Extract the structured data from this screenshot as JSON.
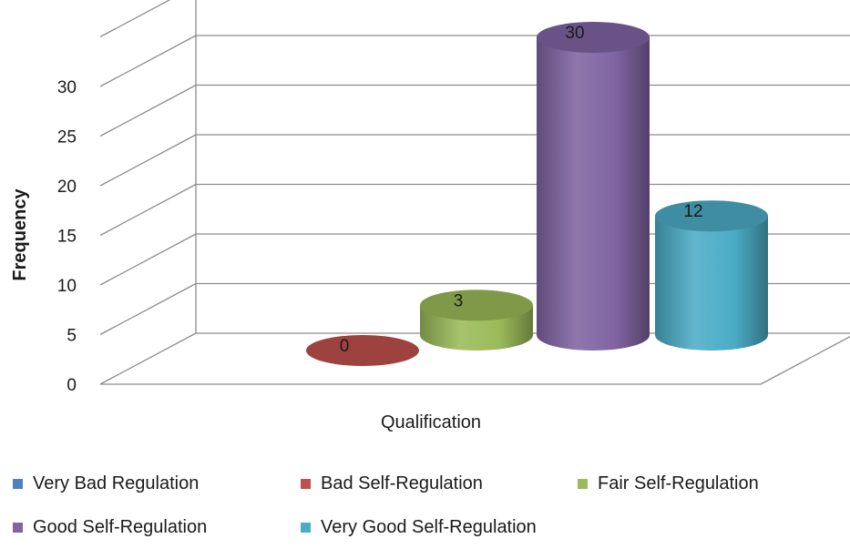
{
  "chart_data": {
    "type": "bar",
    "style": "3d-cylinder",
    "xlabel": "Qualification",
    "ylabel": "Frequency",
    "ylim": [
      0,
      35
    ],
    "yticks": [
      0,
      5,
      10,
      15,
      20,
      25,
      30
    ],
    "grid": true,
    "legend_position": "bottom",
    "series": [
      {
        "name": "Very Bad Regulation",
        "value": null,
        "color": "#4f81bd"
      },
      {
        "name": "Bad Self-Regulation",
        "value": 0,
        "label": "0",
        "color": "#c0504d"
      },
      {
        "name": "Fair Self-Regulation",
        "value": 3,
        "label": "3",
        "color": "#9bbb59"
      },
      {
        "name": "Good Self-Regulation",
        "value": 30,
        "label": "30",
        "color": "#8064a2"
      },
      {
        "name": "Very Good Self-Regulation",
        "value": 12,
        "label": "12",
        "color": "#4bacc6"
      }
    ]
  }
}
